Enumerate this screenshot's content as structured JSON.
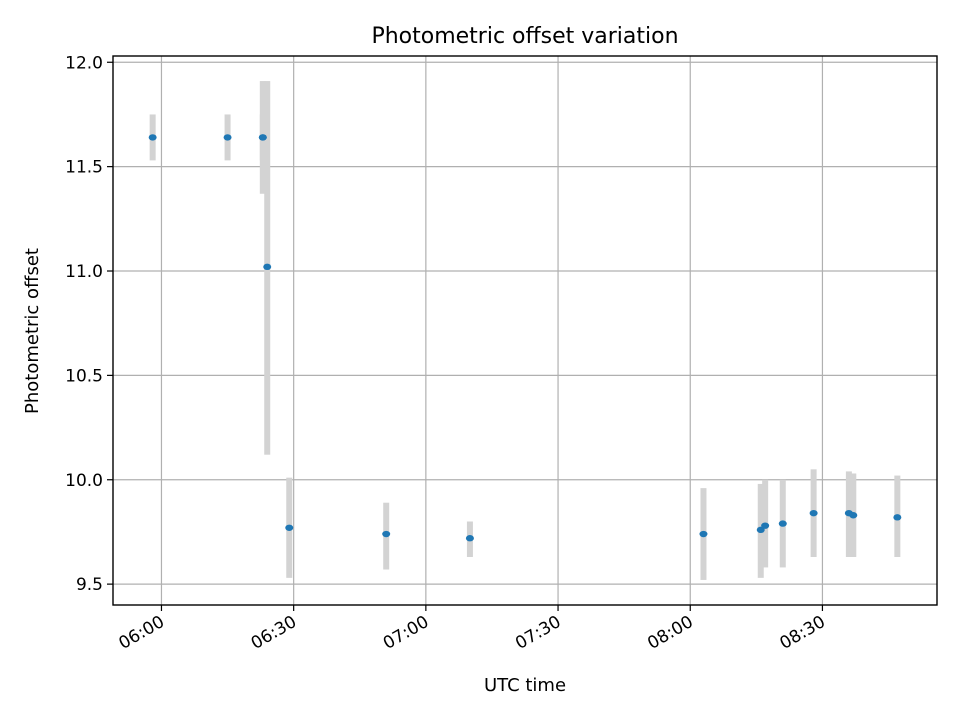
{
  "chart_data": {
    "type": "scatter",
    "title": "Photometric offset variation",
    "xlabel": "UTC time",
    "ylabel": "Photometric offset",
    "xlim": [
      "05:49",
      "08:56"
    ],
    "ylim": [
      9.4,
      12.03
    ],
    "x_ticks": [
      "06:00",
      "06:30",
      "07:00",
      "07:30",
      "08:00",
      "08:30"
    ],
    "y_ticks": [
      "9.5",
      "10.0",
      "10.5",
      "11.0",
      "11.5",
      "12.0"
    ],
    "grid": true,
    "colors": {
      "point": "#1f77b4",
      "errorbar": "#d3d3d3"
    },
    "series": [
      {
        "points": [
          {
            "x": "05:58",
            "y": 11.64,
            "ylow": 11.53,
            "yhigh": 11.75
          },
          {
            "x": "06:15",
            "y": 11.64,
            "ylow": 11.53,
            "yhigh": 11.75
          },
          {
            "x": "06:23",
            "y": 11.64,
            "ylow": 11.53,
            "yhigh": 11.75
          },
          {
            "x": "06:23",
            "y": 11.64,
            "ylow": 11.37,
            "yhigh": 11.91
          },
          {
            "x": "06:24",
            "y": 11.02,
            "ylow": 10.12,
            "yhigh": 11.91
          },
          {
            "x": "06:29",
            "y": 9.77,
            "ylow": 9.53,
            "yhigh": 10.01
          },
          {
            "x": "06:51",
            "y": 9.74,
            "ylow": 9.57,
            "yhigh": 9.89
          },
          {
            "x": "07:10",
            "y": 9.72,
            "ylow": 9.63,
            "yhigh": 9.8
          },
          {
            "x": "08:03",
            "y": 9.74,
            "ylow": 9.52,
            "yhigh": 9.96
          },
          {
            "x": "08:16",
            "y": 9.76,
            "ylow": 9.53,
            "yhigh": 9.98
          },
          {
            "x": "08:17",
            "y": 9.78,
            "ylow": 9.58,
            "yhigh": 10.0
          },
          {
            "x": "08:21",
            "y": 9.79,
            "ylow": 9.58,
            "yhigh": 10.0
          },
          {
            "x": "08:28",
            "y": 9.84,
            "ylow": 9.63,
            "yhigh": 10.05
          },
          {
            "x": "08:36",
            "y": 9.84,
            "ylow": 9.63,
            "yhigh": 10.04
          },
          {
            "x": "08:37",
            "y": 9.83,
            "ylow": 9.63,
            "yhigh": 10.03
          },
          {
            "x": "08:47",
            "y": 9.82,
            "ylow": 9.63,
            "yhigh": 10.02
          }
        ]
      }
    ]
  }
}
